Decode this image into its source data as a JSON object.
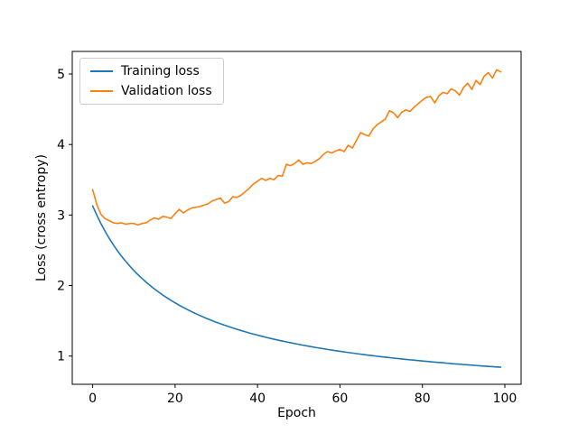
{
  "chart_data": {
    "type": "line",
    "title": "",
    "xlabel": "Epoch",
    "ylabel": "Loss (cross entropy)",
    "xticks": [
      0,
      20,
      40,
      60,
      80,
      100
    ],
    "yticks": [
      1,
      2,
      3,
      4,
      5
    ],
    "xlim": [
      -4.95,
      103.95
    ],
    "ylim": [
      0.6,
      5.32
    ],
    "grid": false,
    "legend_position": "upper left",
    "x": [
      0,
      1,
      2,
      3,
      4,
      5,
      6,
      7,
      8,
      9,
      10,
      11,
      12,
      13,
      14,
      15,
      16,
      17,
      18,
      19,
      20,
      21,
      22,
      23,
      24,
      25,
      26,
      27,
      28,
      29,
      30,
      31,
      32,
      33,
      34,
      35,
      36,
      37,
      38,
      39,
      40,
      41,
      42,
      43,
      44,
      45,
      46,
      47,
      48,
      49,
      50,
      51,
      52,
      53,
      54,
      55,
      56,
      57,
      58,
      59,
      60,
      61,
      62,
      63,
      64,
      65,
      66,
      67,
      68,
      69,
      70,
      71,
      72,
      73,
      74,
      75,
      76,
      77,
      78,
      79,
      80,
      81,
      82,
      83,
      84,
      85,
      86,
      87,
      88,
      89,
      90,
      91,
      92,
      93,
      94,
      95,
      96,
      97,
      98,
      99
    ],
    "series": [
      {
        "name": "Training loss",
        "color": "#1f77b4",
        "values": [
          3.13,
          2.999,
          2.88,
          2.771,
          2.672,
          2.58,
          2.495,
          2.417,
          2.344,
          2.277,
          2.213,
          2.154,
          2.099,
          2.047,
          1.998,
          1.951,
          1.908,
          1.866,
          1.827,
          1.79,
          1.755,
          1.721,
          1.69,
          1.659,
          1.63,
          1.602,
          1.576,
          1.55,
          1.526,
          1.502,
          1.48,
          1.458,
          1.438,
          1.418,
          1.399,
          1.38,
          1.362,
          1.345,
          1.328,
          1.312,
          1.297,
          1.282,
          1.267,
          1.253,
          1.239,
          1.226,
          1.213,
          1.201,
          1.189,
          1.177,
          1.166,
          1.155,
          1.144,
          1.133,
          1.123,
          1.113,
          1.104,
          1.094,
          1.085,
          1.076,
          1.068,
          1.059,
          1.051,
          1.043,
          1.035,
          1.027,
          1.02,
          1.012,
          1.005,
          0.998,
          0.991,
          0.984,
          0.978,
          0.971,
          0.965,
          0.959,
          0.953,
          0.947,
          0.941,
          0.936,
          0.93,
          0.925,
          0.919,
          0.914,
          0.909,
          0.904,
          0.899,
          0.894,
          0.889,
          0.885,
          0.88,
          0.876,
          0.871,
          0.867,
          0.862,
          0.858,
          0.854,
          0.85,
          0.846,
          0.842
        ]
      },
      {
        "name": "Validation loss",
        "color": "#ff7f0e",
        "values": [
          3.36,
          3.15,
          3.01,
          2.95,
          2.92,
          2.89,
          2.88,
          2.89,
          2.87,
          2.88,
          2.88,
          2.86,
          2.88,
          2.89,
          2.93,
          2.96,
          2.94,
          2.98,
          2.97,
          2.95,
          3.02,
          3.08,
          3.03,
          3.07,
          3.1,
          3.11,
          3.12,
          3.14,
          3.16,
          3.2,
          3.22,
          3.24,
          3.17,
          3.19,
          3.26,
          3.25,
          3.28,
          3.33,
          3.38,
          3.44,
          3.48,
          3.52,
          3.49,
          3.52,
          3.5,
          3.56,
          3.55,
          3.72,
          3.7,
          3.73,
          3.78,
          3.72,
          3.74,
          3.73,
          3.76,
          3.8,
          3.86,
          3.9,
          3.88,
          3.91,
          3.93,
          3.9,
          3.99,
          3.95,
          4.06,
          4.17,
          4.14,
          4.12,
          4.22,
          4.28,
          4.32,
          4.36,
          4.48,
          4.45,
          4.38,
          4.46,
          4.49,
          4.47,
          4.53,
          4.58,
          4.63,
          4.67,
          4.68,
          4.59,
          4.69,
          4.74,
          4.72,
          4.79,
          4.76,
          4.7,
          4.81,
          4.87,
          4.78,
          4.91,
          4.85,
          4.97,
          5.02,
          4.94,
          5.06,
          5.03
        ]
      }
    ]
  }
}
